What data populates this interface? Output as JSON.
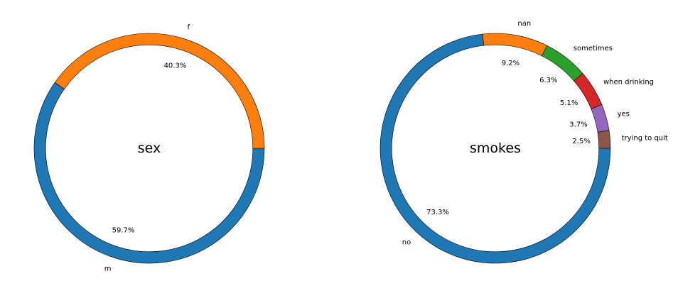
{
  "chart_data": [
    {
      "type": "pie",
      "donut": true,
      "title": "sex",
      "slices": [
        {
          "label": "m",
          "pct_label": "59.7%",
          "value": 59.7,
          "color": "#1f77b4"
        },
        {
          "label": "f",
          "pct_label": "40.3%",
          "value": 40.3,
          "color": "#ff7f0e"
        }
      ]
    },
    {
      "type": "pie",
      "donut": true,
      "title": "smokes",
      "slices": [
        {
          "label": "no",
          "pct_label": "73.3%",
          "value": 73.3,
          "color": "#1f77b4"
        },
        {
          "label": "nan",
          "pct_label": "9.2%",
          "value": 9.2,
          "color": "#ff7f0e"
        },
        {
          "label": "sometimes",
          "pct_label": "6.3%",
          "value": 6.3,
          "color": "#2ca02c"
        },
        {
          "label": "when drinking",
          "pct_label": "5.1%",
          "value": 5.1,
          "color": "#d62728"
        },
        {
          "label": "yes",
          "pct_label": "3.7%",
          "value": 3.7,
          "color": "#9467bd"
        },
        {
          "label": "trying to quit",
          "pct_label": "2.5%",
          "value": 2.5,
          "color": "#8c564b"
        }
      ]
    }
  ]
}
